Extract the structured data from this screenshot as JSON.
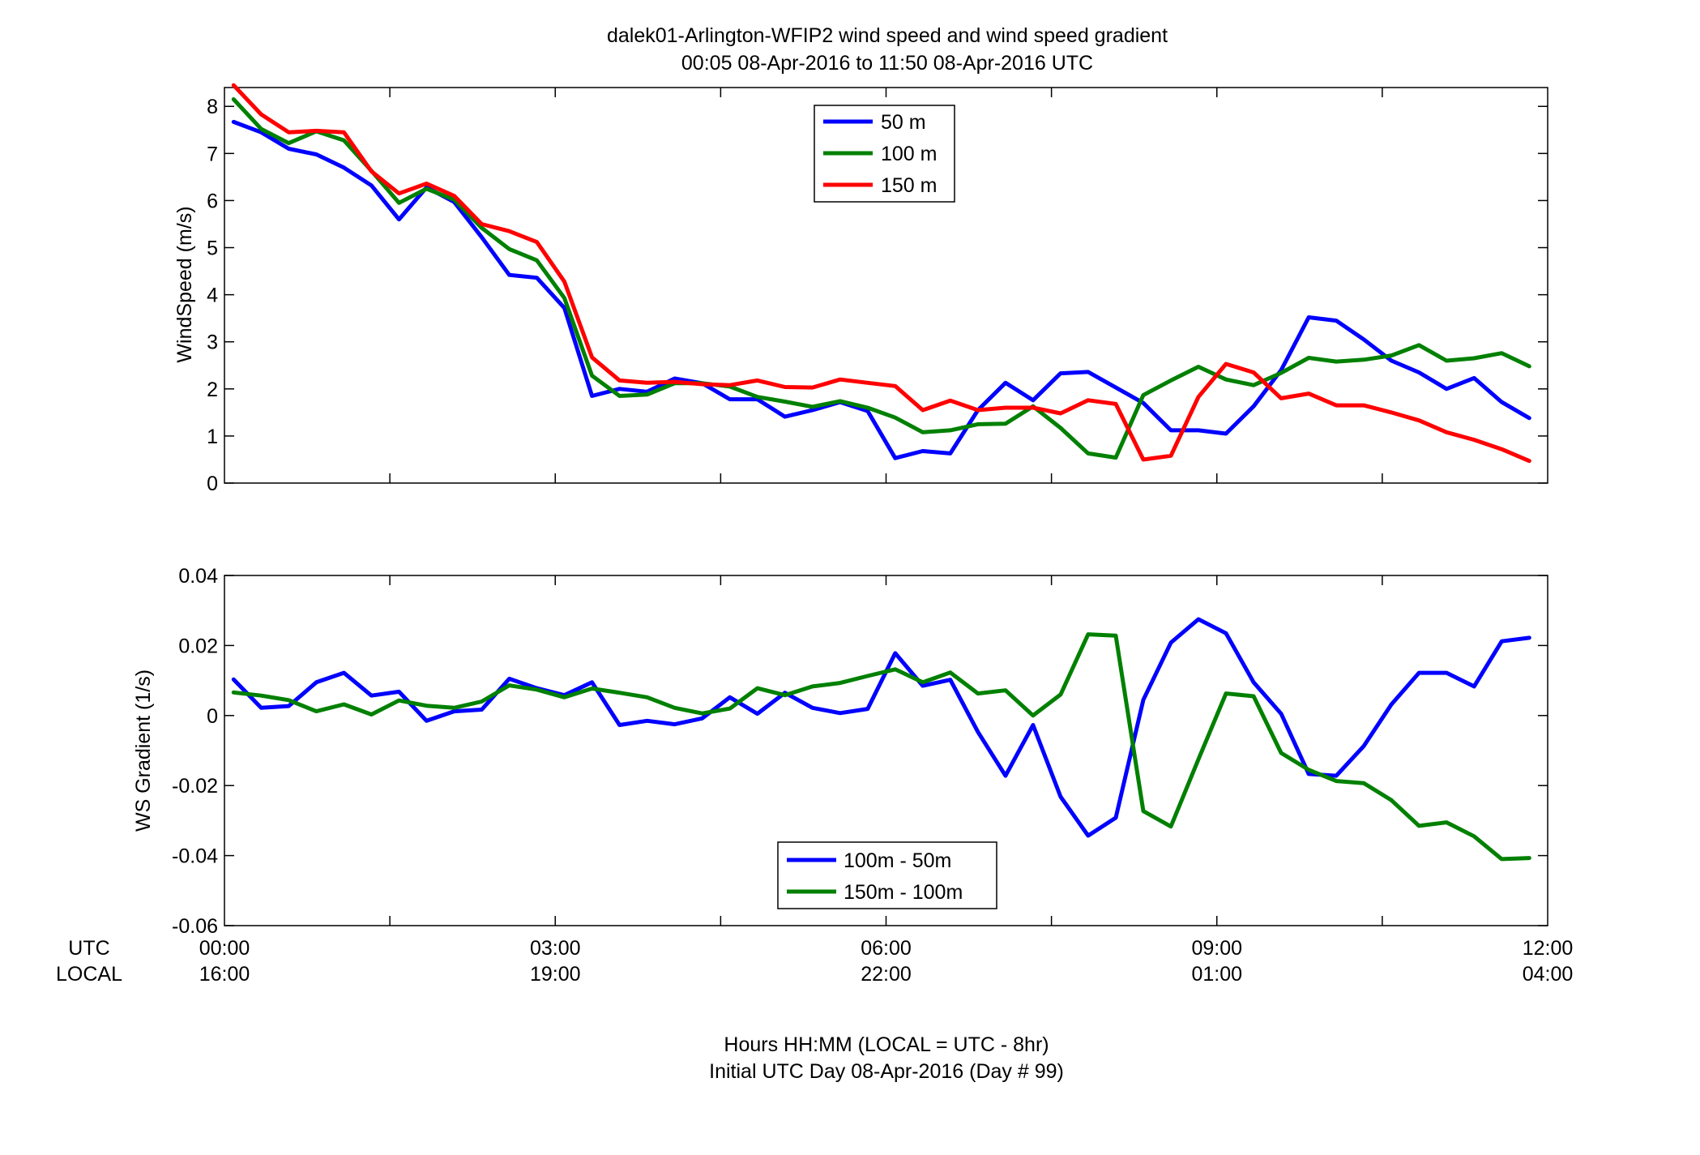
{
  "chart_data": [
    {
      "type": "line",
      "title": "dalek01-Arlington-WFIP2  wind speed and wind speed gradient",
      "subtitle": "00:05 08-Apr-2016 to 11:50 08-Apr-2016  UTC",
      "ylabel": "WindSpeed (m/s)",
      "xlim": [
        0,
        12
      ],
      "ylim": [
        0,
        8.4
      ],
      "yticks": [
        "0",
        "1",
        "2",
        "3",
        "4",
        "5",
        "6",
        "7",
        "8"
      ],
      "grid": false,
      "legend_position": "top-center",
      "x": [
        0.083,
        0.333,
        0.583,
        0.833,
        1.083,
        1.333,
        1.583,
        1.833,
        2.083,
        2.333,
        2.583,
        2.833,
        3.083,
        3.333,
        3.583,
        3.833,
        4.083,
        4.333,
        4.583,
        4.833,
        5.083,
        5.333,
        5.583,
        5.833,
        6.083,
        6.333,
        6.583,
        6.833,
        7.083,
        7.333,
        7.583,
        7.833,
        8.083,
        8.333,
        8.583,
        8.833,
        9.083,
        9.333,
        9.583,
        9.833,
        10.083,
        10.333,
        10.583,
        10.833,
        11.083,
        11.333,
        11.583,
        11.833
      ],
      "series": [
        {
          "name": "50 m",
          "color": "#0000ff",
          "values": [
            7.67,
            7.45,
            7.1,
            6.98,
            6.7,
            6.32,
            5.6,
            6.28,
            5.97,
            5.22,
            4.42,
            4.36,
            3.72,
            1.85,
            2.0,
            1.94,
            2.22,
            2.12,
            1.78,
            1.78,
            1.41,
            1.55,
            1.72,
            1.53,
            0.53,
            0.68,
            0.63,
            1.55,
            2.13,
            1.76,
            2.33,
            2.36,
            2.03,
            1.7,
            1.12,
            1.12,
            1.05,
            1.63,
            2.4,
            3.52,
            3.45,
            3.05,
            2.6,
            2.35,
            2.0,
            2.23,
            1.72,
            1.38
          ]
        },
        {
          "name": "100 m",
          "color": "#008000",
          "values": [
            8.15,
            7.52,
            7.22,
            7.47,
            7.28,
            6.63,
            5.95,
            6.25,
            6.02,
            5.42,
            4.97,
            4.73,
            3.93,
            2.28,
            1.85,
            1.88,
            2.12,
            2.12,
            2.05,
            1.83,
            1.73,
            1.62,
            1.74,
            1.6,
            1.39,
            1.08,
            1.12,
            1.25,
            1.26,
            1.63,
            1.17,
            0.63,
            0.54,
            1.87,
            2.18,
            2.47,
            2.2,
            2.08,
            2.34,
            2.66,
            2.58,
            2.62,
            2.71,
            2.93,
            2.6,
            2.65,
            2.76,
            2.48
          ]
        },
        {
          "name": "150 m",
          "color": "#ff0000",
          "values": [
            8.45,
            7.83,
            7.45,
            7.48,
            7.45,
            6.62,
            6.15,
            6.36,
            6.1,
            5.5,
            5.35,
            5.12,
            4.28,
            2.67,
            2.18,
            2.13,
            2.15,
            2.1,
            2.08,
            2.18,
            2.04,
            2.03,
            2.2,
            2.13,
            2.06,
            1.55,
            1.75,
            1.55,
            1.6,
            1.6,
            1.48,
            1.76,
            1.68,
            0.5,
            0.58,
            1.83,
            2.53,
            2.35,
            1.8,
            1.9,
            1.65,
            1.65,
            1.5,
            1.33,
            1.08,
            0.92,
            0.72,
            0.47
          ]
        }
      ]
    },
    {
      "type": "line",
      "ylabel": "WS Gradient (1/s)",
      "xlim": [
        0,
        12
      ],
      "ylim": [
        -0.06,
        0.04
      ],
      "yticks": [
        "-0.06",
        "-0.04",
        "-0.02",
        "0",
        "0.02",
        "0.04"
      ],
      "grid": false,
      "legend_position": "bottom-center",
      "x": [
        0.083,
        0.333,
        0.583,
        0.833,
        1.083,
        1.333,
        1.583,
        1.833,
        2.083,
        2.333,
        2.583,
        2.833,
        3.083,
        3.333,
        3.583,
        3.833,
        4.083,
        4.333,
        4.583,
        4.833,
        5.083,
        5.333,
        5.583,
        5.833,
        6.083,
        6.333,
        6.583,
        6.833,
        7.083,
        7.333,
        7.583,
        7.833,
        8.083,
        8.333,
        8.583,
        8.833,
        9.083,
        9.333,
        9.583,
        9.833,
        10.083,
        10.333,
        10.583,
        10.833,
        11.083,
        11.333,
        11.583,
        11.833
      ],
      "series": [
        {
          "name": "100m - 50m",
          "color": "#0000ff",
          "values": [
            0.0103,
            0.0022,
            0.0027,
            0.0095,
            0.0122,
            0.0057,
            0.0068,
            -0.0015,
            0.0012,
            0.0017,
            0.0105,
            0.0078,
            0.0058,
            0.0095,
            -0.0027,
            -0.0015,
            -0.0025,
            -0.0008,
            0.0052,
            0.0005,
            0.0065,
            0.0022,
            0.0007,
            0.0019,
            0.0178,
            0.0085,
            0.0102,
            -0.0047,
            -0.0172,
            -0.0027,
            -0.0232,
            -0.0343,
            -0.0292,
            0.0045,
            0.0208,
            0.0275,
            0.0235,
            0.0095,
            0.0005,
            -0.0167,
            -0.0172,
            -0.0087,
            0.0032,
            0.0122,
            0.0122,
            0.0083,
            0.0212,
            0.0222
          ]
        },
        {
          "name": "150m - 100m",
          "color": "#008000",
          "values": [
            0.0066,
            0.0057,
            0.0044,
            0.0012,
            0.0032,
            0.0003,
            0.0043,
            0.0028,
            0.0022,
            0.004,
            0.0086,
            0.0074,
            0.0052,
            0.0077,
            0.0065,
            0.0052,
            0.0022,
            0.0006,
            0.002,
            0.0078,
            0.0058,
            0.0083,
            0.0093,
            0.0113,
            0.0132,
            0.0095,
            0.0123,
            0.0063,
            0.0072,
            0.0,
            0.006,
            0.0232,
            0.0228,
            -0.0273,
            -0.0317,
            -0.0125,
            0.0063,
            0.0055,
            -0.0107,
            -0.0155,
            -0.0187,
            -0.0193,
            -0.0242,
            -0.0315,
            -0.0305,
            -0.0345,
            -0.041,
            -0.0407
          ]
        }
      ]
    }
  ],
  "xaxis": {
    "utc_label": "UTC",
    "local_label": "LOCAL",
    "utc_ticks": [
      "00:00",
      "03:00",
      "06:00",
      "09:00",
      "12:00"
    ],
    "local_ticks": [
      "16:00",
      "19:00",
      "22:00",
      "01:00",
      "04:00"
    ],
    "label_line1": "Hours HH:MM  (LOCAL = UTC - 8hr)",
    "label_line2": "Initial UTC Day 08-Apr-2016 (Day # 99)"
  }
}
